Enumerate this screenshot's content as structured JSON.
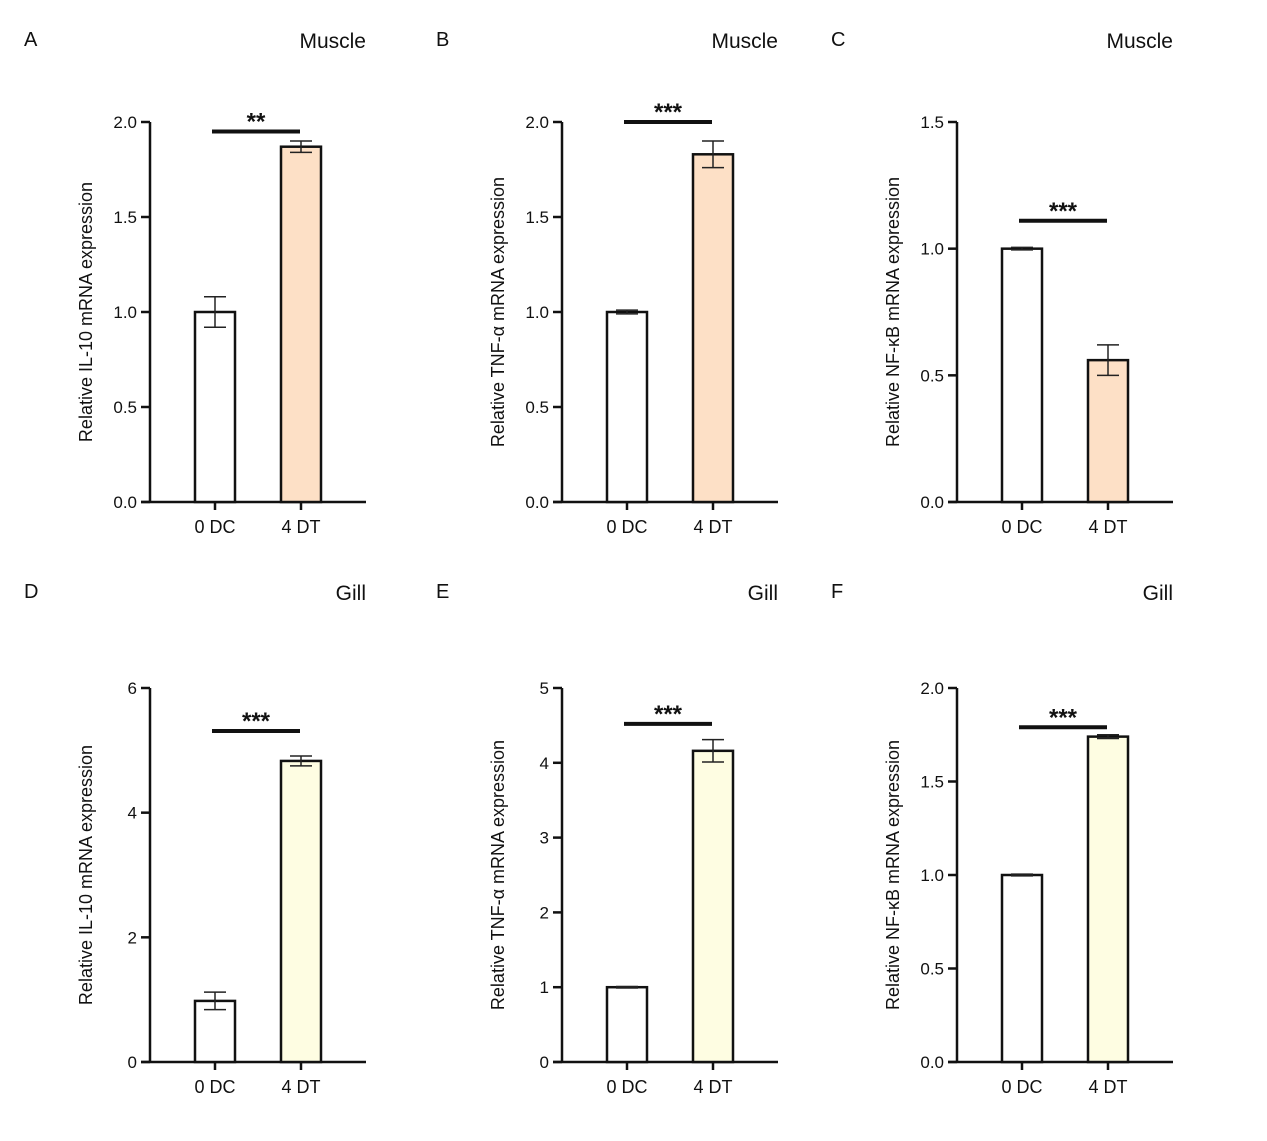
{
  "chart_data": [
    {
      "type": "bar",
      "panel": "A",
      "title": "Muscle",
      "ylabel": "Relative IL-10 mRNA expression",
      "categories": [
        "0 DC",
        "4 DT"
      ],
      "values": [
        1.0,
        1.87
      ],
      "errors": [
        0.08,
        0.03
      ],
      "ylim": [
        0,
        2.0
      ],
      "yticks": [
        "0.0",
        "0.5",
        "1.0",
        "1.5",
        "2.0"
      ],
      "significance": {
        "label": "**",
        "level": 1.95
      },
      "colors": [
        "#ffffff",
        "#fde0c6"
      ],
      "grid": false
    },
    {
      "type": "bar",
      "panel": "B",
      "title": "Muscle",
      "ylabel": "Relative TNF-α mRNA expression",
      "categories": [
        "0 DC",
        "4 DT"
      ],
      "values": [
        1.0,
        1.83
      ],
      "errors": [
        0.01,
        0.07
      ],
      "ylim": [
        0,
        2.0
      ],
      "yticks": [
        "0.0",
        "0.5",
        "1.0",
        "1.5",
        "2.0"
      ],
      "significance": {
        "label": "***",
        "level": 2.0
      },
      "colors": [
        "#ffffff",
        "#fde0c6"
      ],
      "grid": false
    },
    {
      "type": "bar",
      "panel": "C",
      "title": "Muscle",
      "ylabel": "Relative NF-κB mRNA expression",
      "categories": [
        "0 DC",
        "4 DT"
      ],
      "values": [
        1.0,
        0.56
      ],
      "errors": [
        0.005,
        0.06
      ],
      "ylim": [
        0,
        1.5
      ],
      "yticks": [
        "0.0",
        "0.5",
        "1.0",
        "1.5"
      ],
      "significance": {
        "label": "***",
        "level": 1.11
      },
      "colors": [
        "#ffffff",
        "#fde0c6"
      ],
      "grid": false
    },
    {
      "type": "bar",
      "panel": "D",
      "title": "Gill",
      "ylabel": "Relative IL-10 mRNA expression",
      "categories": [
        "0 DC",
        "4 DT"
      ],
      "values": [
        0.98,
        4.83
      ],
      "errors": [
        0.14,
        0.08
      ],
      "ylim": [
        0,
        6
      ],
      "yticks": [
        "0",
        "2",
        "4",
        "6"
      ],
      "significance": {
        "label": "***",
        "level": 5.31
      },
      "colors": [
        "#ffffff",
        "#fefde2"
      ],
      "grid": false
    },
    {
      "type": "bar",
      "panel": "E",
      "title": "Gill",
      "ylabel": "Relative TNF-α mRNA expression",
      "categories": [
        "0 DC",
        "4 DT"
      ],
      "values": [
        1.0,
        4.16
      ],
      "errors": [
        0.01,
        0.15
      ],
      "ylim": [
        0,
        5
      ],
      "yticks": [
        "0",
        "1",
        "2",
        "3",
        "4",
        "5"
      ],
      "significance": {
        "label": "***",
        "level": 4.52
      },
      "colors": [
        "#ffffff",
        "#fefde2"
      ],
      "grid": false
    },
    {
      "type": "bar",
      "panel": "F",
      "title": "Gill",
      "ylabel": "Relative NF-κB mRNA expression",
      "categories": [
        "0 DC",
        "4 DT"
      ],
      "values": [
        1.0,
        1.74
      ],
      "errors": [
        0.005,
        0.01
      ],
      "ylim": [
        0,
        2.0
      ],
      "yticks": [
        "0.0",
        "0.5",
        "1.0",
        "1.5",
        "2.0"
      ],
      "significance": {
        "label": "***",
        "level": 1.79
      },
      "colors": [
        "#ffffff",
        "#fefde2"
      ],
      "grid": false
    }
  ]
}
